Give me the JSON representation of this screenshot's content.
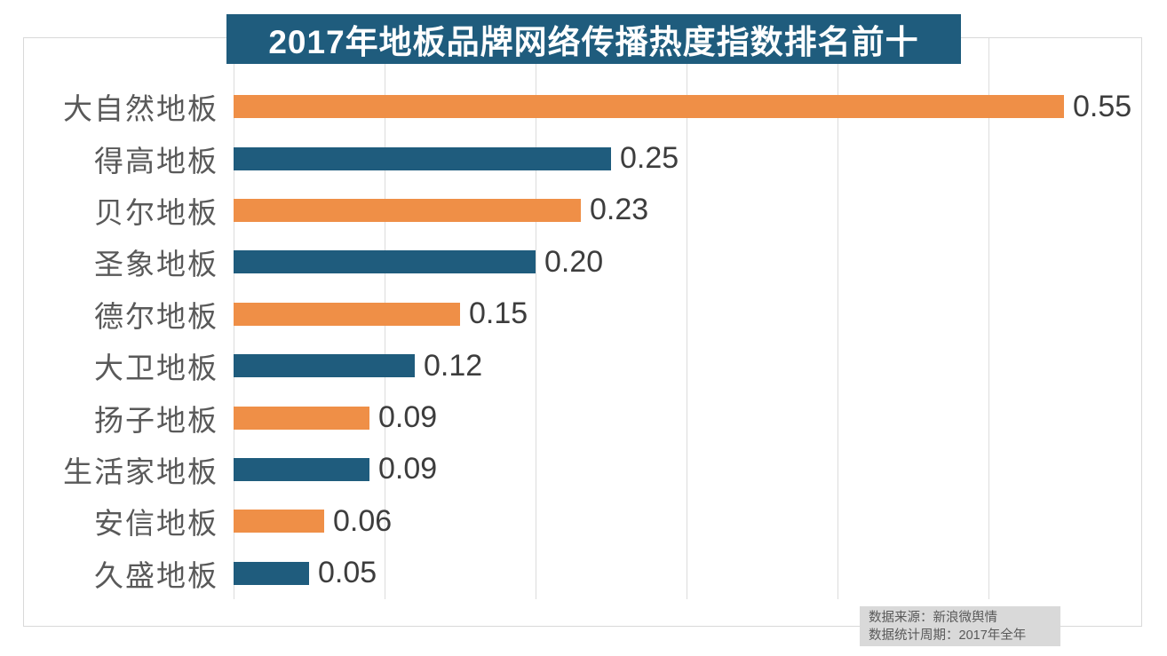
{
  "title": {
    "text": "2017年地板品牌网络传播热度指数排名前十"
  },
  "chart_data": {
    "type": "bar",
    "orientation": "horizontal",
    "title": "2017年地板品牌网络传播热度指数排名前十",
    "categories": [
      "大自然地板",
      "得高地板",
      "贝尔地板",
      "圣象地板",
      "德尔地板",
      "大卫地板",
      "扬子地板",
      "生活家地板",
      "安信地板",
      "久盛地板"
    ],
    "values": [
      0.55,
      0.25,
      0.23,
      0.2,
      0.15,
      0.12,
      0.09,
      0.09,
      0.06,
      0.05
    ],
    "value_labels": [
      "0.55",
      "0.25",
      "0.23",
      "0.20",
      "0.15",
      "0.12",
      "0.09",
      "0.09",
      "0.06",
      "0.05"
    ],
    "bar_colors": [
      "#ef8f47",
      "#1f5c7d",
      "#ef8f47",
      "#1f5c7d",
      "#ef8f47",
      "#1f5c7d",
      "#ef8f47",
      "#1f5c7d",
      "#ef8f47",
      "#1f5c7d"
    ],
    "xlabel": "",
    "ylabel": "",
    "xlim": [
      0,
      0.6
    ],
    "gridline_ticks": [
      0,
      0.1,
      0.2,
      0.3,
      0.4,
      0.5
    ],
    "grid": "vertical-only",
    "legend_position": "none"
  },
  "colors": {
    "bar_orange": "#ef8f47",
    "bar_blue": "#1f5c7d",
    "title_background": "#1f5c7d",
    "title_text": "#ffffff",
    "category_label": "#595959",
    "value_label": "#3d3d3d",
    "gridline": "#dcdcdc",
    "chart_border": "#d9d9d9",
    "footer_background": "#d9d9d9",
    "footer_text": "#595959"
  },
  "footer": {
    "source": "数据来源：新浪微舆情",
    "period": "数据统计周期：2017年全年"
  }
}
